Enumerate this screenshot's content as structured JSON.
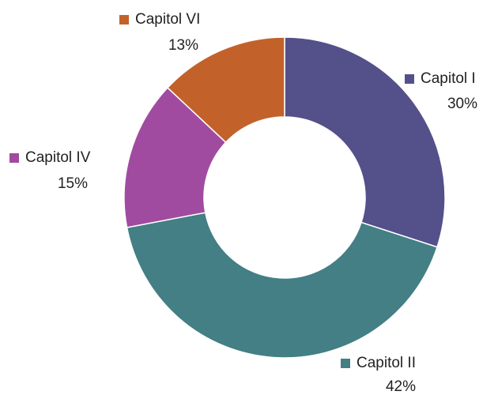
{
  "chart_data": {
    "type": "donut",
    "categories": [
      "Capitol I",
      "Capitol II",
      "Capitol IV",
      "Capitol VI"
    ],
    "values": [
      30,
      42,
      15,
      13
    ],
    "value_labels": [
      "30%",
      "42%",
      "15%",
      "13%"
    ],
    "colors": [
      "#54508a",
      "#437f84",
      "#a04ba0",
      "#c2622a"
    ]
  }
}
